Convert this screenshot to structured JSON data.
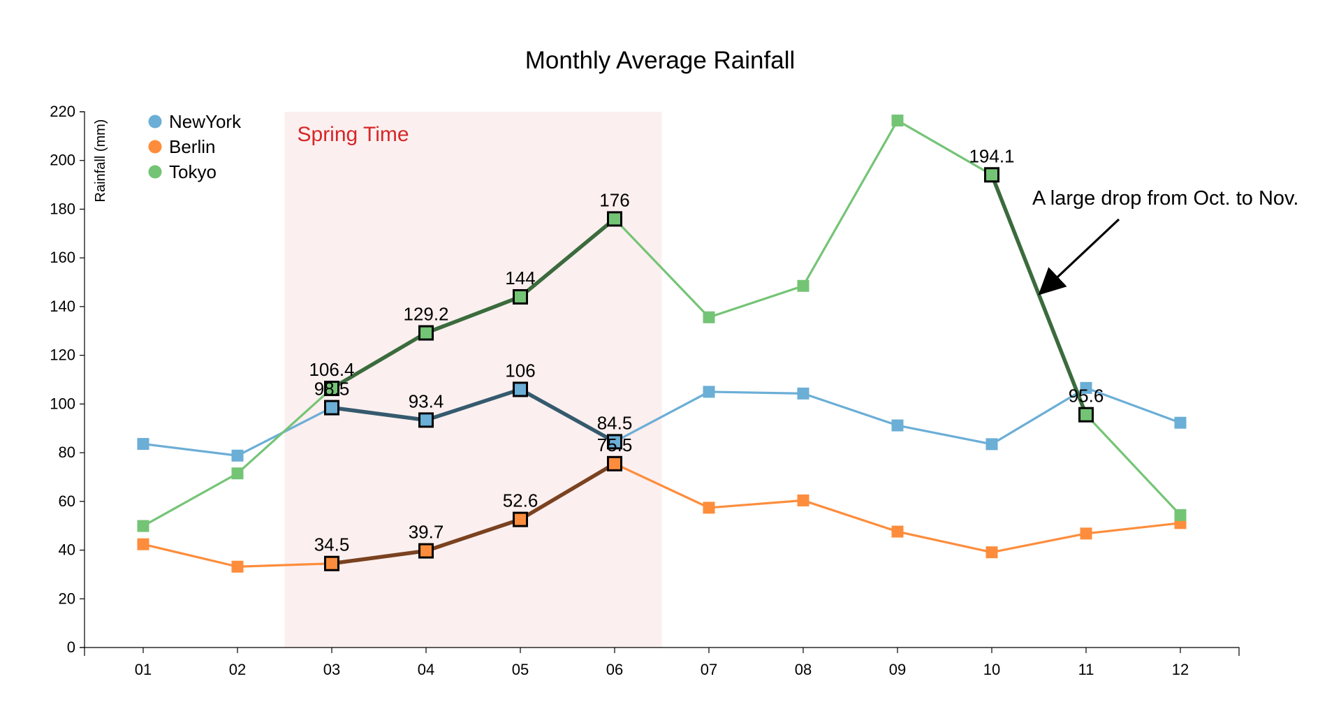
{
  "chart_data": {
    "type": "line",
    "title": "Monthly Average Rainfall",
    "xlabel": "",
    "ylabel": "Rainfall (mm)",
    "categories": [
      "01",
      "02",
      "03",
      "04",
      "05",
      "06",
      "07",
      "08",
      "09",
      "10",
      "11",
      "12"
    ],
    "ylim": [
      0,
      220
    ],
    "yticks": [
      0,
      20,
      40,
      60,
      80,
      100,
      120,
      140,
      160,
      180,
      200,
      220
    ],
    "grid": false,
    "legend_position": "top-left",
    "series": [
      {
        "name": "NewYork",
        "color": "#6baed6",
        "highlight_color": "#355a6e",
        "values": [
          83.6,
          78.8,
          98.5,
          93.4,
          106.0,
          84.5,
          105.0,
          104.3,
          91.2,
          83.5,
          106.6,
          92.3
        ],
        "highlight_range": [
          2,
          5
        ]
      },
      {
        "name": "Berlin",
        "color": "#fd8d3c",
        "highlight_color": "#7a4220",
        "values": [
          42.4,
          33.2,
          34.5,
          39.7,
          52.6,
          75.5,
          57.4,
          60.4,
          47.6,
          39.1,
          46.8,
          51.1
        ],
        "highlight_range": [
          2,
          5
        ]
      },
      {
        "name": "Tokyo",
        "color": "#74c476",
        "highlight_color": "#3b6b3d",
        "values": [
          49.9,
          71.5,
          106.4,
          129.2,
          144.0,
          176.0,
          135.6,
          148.5,
          216.4,
          194.1,
          95.6,
          54.4
        ],
        "highlight_range": [
          2,
          5
        ],
        "extra_highlight_range": [
          9,
          10
        ]
      }
    ],
    "data_labels": [
      {
        "series": "Tokyo",
        "index": 2,
        "text": "106.4"
      },
      {
        "series": "Tokyo",
        "index": 3,
        "text": "129.2"
      },
      {
        "series": "Tokyo",
        "index": 4,
        "text": "144"
      },
      {
        "series": "Tokyo",
        "index": 5,
        "text": "176"
      },
      {
        "series": "Tokyo",
        "index": 9,
        "text": "194.1"
      },
      {
        "series": "Tokyo",
        "index": 10,
        "text": "95.6"
      },
      {
        "series": "NewYork",
        "index": 2,
        "text": "98.5"
      },
      {
        "series": "NewYork",
        "index": 3,
        "text": "93.4"
      },
      {
        "series": "NewYork",
        "index": 4,
        "text": "106"
      },
      {
        "series": "NewYork",
        "index": 5,
        "text": "84.5"
      },
      {
        "series": "Berlin",
        "index": 2,
        "text": "34.5"
      },
      {
        "series": "Berlin",
        "index": 3,
        "text": "39.7"
      },
      {
        "series": "Berlin",
        "index": 4,
        "text": "52.6"
      },
      {
        "series": "Berlin",
        "index": 5,
        "text": "75.5"
      }
    ],
    "highlight_region": {
      "label": "Spring Time",
      "from_index": 2,
      "to_index": 5,
      "fill": "#fcefef",
      "label_color": "#d62728"
    },
    "annotations": [
      {
        "text": "A large drop from Oct. to Nov.",
        "target_series": "Tokyo",
        "target_between": [
          9,
          10
        ]
      }
    ]
  }
}
